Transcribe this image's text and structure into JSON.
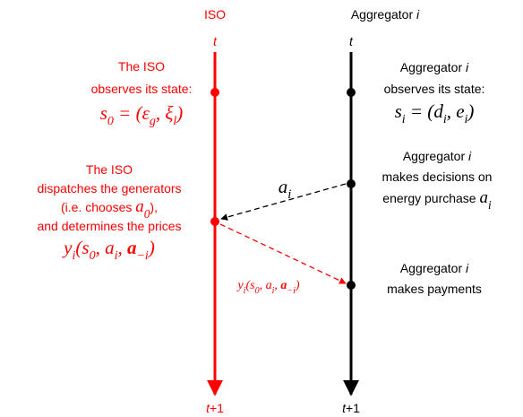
{
  "headers": {
    "iso": "ISO",
    "aggregator": {
      "text": "Aggregator ",
      "var": "i"
    }
  },
  "timelines": {
    "iso": {
      "start": "t",
      "end": {
        "var": "t",
        "rest": "+1"
      }
    },
    "aggregator": {
      "start": "t",
      "end": {
        "var": "t",
        "rest": "+1"
      }
    }
  },
  "events": [
    {
      "lines": [
        "The ISO",
        "observes its state:"
      ],
      "math": [
        {
          "base": "s",
          "sub": "0"
        },
        " = (",
        {
          "base": "ε",
          "sub": "g"
        },
        ", ",
        {
          "base": "ξ",
          "sub": "l"
        },
        ")"
      ]
    },
    {
      "lines": [
        {
          "text": "Aggregator ",
          "var": "i"
        },
        "observes its state:"
      ],
      "math": [
        {
          "base": "s",
          "sub": "i"
        },
        " = (",
        {
          "base": "d",
          "sub": "i"
        },
        ", ",
        {
          "base": "e",
          "sub": "i"
        },
        ")"
      ]
    },
    {
      "lines": [
        {
          "text": "Aggregator ",
          "var": "i"
        },
        "makes decisions on",
        {
          "text": "energy purchase ",
          "math": {
            "base": "a",
            "sub": "i"
          }
        }
      ]
    },
    {
      "lines": [
        "The ISO",
        "dispatches the generators",
        {
          "text": "(i.e. chooses ",
          "math": {
            "base": "a",
            "sub": "0"
          },
          "after": "),"
        },
        "and determines the prices"
      ],
      "math": [
        {
          "base": "y",
          "sub": "i"
        },
        "(",
        {
          "base": "s",
          "sub": "0"
        },
        ", ",
        {
          "base": "a",
          "sub": "i"
        },
        ", ",
        {
          "base": "a",
          "sub": "−i"
        },
        ")"
      ]
    },
    {
      "lines": [
        {
          "text": "Aggregator ",
          "var": "i"
        },
        "makes payments"
      ]
    }
  ],
  "arrows": {
    "decision": {
      "base": "a",
      "sub": "i"
    },
    "price": [
      {
        "base": "y",
        "sub": "i"
      },
      "(",
      {
        "base": "s",
        "sub": "0"
      },
      ", ",
      {
        "base": "a",
        "sub": "i"
      },
      ", ",
      {
        "base": "a",
        "sub": "−i"
      },
      ")"
    ]
  }
}
